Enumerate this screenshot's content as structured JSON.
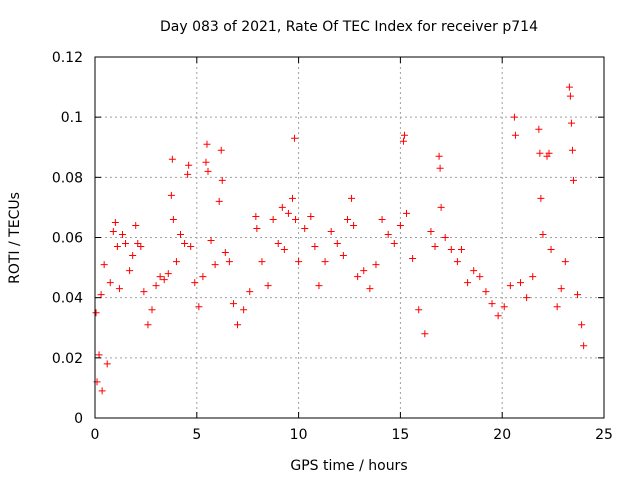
{
  "chart_data": {
    "type": "scatter",
    "title": "Day 083 of 2021, Rate Of TEC Index for receiver p714",
    "xlabel": "GPS time / hours",
    "ylabel": "ROTI / TECUs",
    "xlim": [
      0,
      25
    ],
    "ylim": [
      0,
      0.12
    ],
    "xticks": [
      0,
      5,
      10,
      15,
      20,
      25
    ],
    "xtick_labels": [
      "0",
      "5",
      "10",
      "15",
      "20",
      "25"
    ],
    "yticks": [
      0,
      0.02,
      0.04,
      0.06,
      0.08,
      0.1,
      0.12
    ],
    "ytick_labels": [
      "0",
      "0.02",
      "0.04",
      "0.06",
      "0.08",
      "0.1",
      "0.12"
    ],
    "grid": true,
    "marker": "+",
    "marker_color": "#ff0000",
    "series": [
      {
        "name": "ROTI",
        "points": [
          [
            0.05,
            0.035
          ],
          [
            0.1,
            0.012
          ],
          [
            0.2,
            0.021
          ],
          [
            0.3,
            0.041
          ],
          [
            0.35,
            0.009
          ],
          [
            0.45,
            0.051
          ],
          [
            0.6,
            0.018
          ],
          [
            0.75,
            0.045
          ],
          [
            0.9,
            0.062
          ],
          [
            1.0,
            0.065
          ],
          [
            1.1,
            0.057
          ],
          [
            1.2,
            0.043
          ],
          [
            1.35,
            0.061
          ],
          [
            1.5,
            0.058
          ],
          [
            1.7,
            0.049
          ],
          [
            1.85,
            0.054
          ],
          [
            2.0,
            0.064
          ],
          [
            2.1,
            0.058
          ],
          [
            2.25,
            0.057
          ],
          [
            2.4,
            0.042
          ],
          [
            2.6,
            0.031
          ],
          [
            2.8,
            0.036
          ],
          [
            3.0,
            0.044
          ],
          [
            3.2,
            0.047
          ],
          [
            3.4,
            0.046
          ],
          [
            3.6,
            0.048
          ],
          [
            3.75,
            0.074
          ],
          [
            3.8,
            0.086
          ],
          [
            3.85,
            0.066
          ],
          [
            4.0,
            0.052
          ],
          [
            4.2,
            0.061
          ],
          [
            4.4,
            0.058
          ],
          [
            4.55,
            0.081
          ],
          [
            4.6,
            0.084
          ],
          [
            4.7,
            0.057
          ],
          [
            4.9,
            0.045
          ],
          [
            5.1,
            0.037
          ],
          [
            5.3,
            0.047
          ],
          [
            5.45,
            0.085
          ],
          [
            5.5,
            0.091
          ],
          [
            5.55,
            0.082
          ],
          [
            5.7,
            0.059
          ],
          [
            5.9,
            0.051
          ],
          [
            6.1,
            0.072
          ],
          [
            6.2,
            0.089
          ],
          [
            6.25,
            0.079
          ],
          [
            6.4,
            0.055
          ],
          [
            6.6,
            0.052
          ],
          [
            6.8,
            0.038
          ],
          [
            7.0,
            0.031
          ],
          [
            7.3,
            0.036
          ],
          [
            7.6,
            0.042
          ],
          [
            7.9,
            0.067
          ],
          [
            7.95,
            0.063
          ],
          [
            8.2,
            0.052
          ],
          [
            8.5,
            0.044
          ],
          [
            8.75,
            0.066
          ],
          [
            9.0,
            0.058
          ],
          [
            9.2,
            0.07
          ],
          [
            9.3,
            0.056
          ],
          [
            9.5,
            0.068
          ],
          [
            9.7,
            0.073
          ],
          [
            9.8,
            0.093
          ],
          [
            9.85,
            0.066
          ],
          [
            10.0,
            0.052
          ],
          [
            10.3,
            0.063
          ],
          [
            10.6,
            0.067
          ],
          [
            10.8,
            0.057
          ],
          [
            11.0,
            0.044
          ],
          [
            11.3,
            0.052
          ],
          [
            11.6,
            0.062
          ],
          [
            11.9,
            0.058
          ],
          [
            12.2,
            0.054
          ],
          [
            12.4,
            0.066
          ],
          [
            12.6,
            0.073
          ],
          [
            12.7,
            0.064
          ],
          [
            12.9,
            0.047
          ],
          [
            13.2,
            0.049
          ],
          [
            13.5,
            0.043
          ],
          [
            13.8,
            0.051
          ],
          [
            14.1,
            0.066
          ],
          [
            14.4,
            0.061
          ],
          [
            14.7,
            0.058
          ],
          [
            15.0,
            0.064
          ],
          [
            15.15,
            0.092
          ],
          [
            15.2,
            0.094
          ],
          [
            15.3,
            0.068
          ],
          [
            15.6,
            0.053
          ],
          [
            15.9,
            0.036
          ],
          [
            16.2,
            0.028
          ],
          [
            16.5,
            0.062
          ],
          [
            16.7,
            0.057
          ],
          [
            16.9,
            0.087
          ],
          [
            16.95,
            0.083
          ],
          [
            17.0,
            0.07
          ],
          [
            17.2,
            0.06
          ],
          [
            17.5,
            0.056
          ],
          [
            17.8,
            0.052
          ],
          [
            18.0,
            0.056
          ],
          [
            18.3,
            0.045
          ],
          [
            18.6,
            0.049
          ],
          [
            18.9,
            0.047
          ],
          [
            19.2,
            0.042
          ],
          [
            19.5,
            0.038
          ],
          [
            19.8,
            0.034
          ],
          [
            20.1,
            0.037
          ],
          [
            20.4,
            0.044
          ],
          [
            20.6,
            0.1
          ],
          [
            20.65,
            0.094
          ],
          [
            20.9,
            0.045
          ],
          [
            21.2,
            0.04
          ],
          [
            21.5,
            0.047
          ],
          [
            21.8,
            0.096
          ],
          [
            21.85,
            0.088
          ],
          [
            21.9,
            0.073
          ],
          [
            22.0,
            0.061
          ],
          [
            22.2,
            0.087
          ],
          [
            22.3,
            0.088
          ],
          [
            22.4,
            0.056
          ],
          [
            22.7,
            0.037
          ],
          [
            22.9,
            0.043
          ],
          [
            23.1,
            0.052
          ],
          [
            23.3,
            0.11
          ],
          [
            23.35,
            0.107
          ],
          [
            23.4,
            0.098
          ],
          [
            23.45,
            0.089
          ],
          [
            23.5,
            0.079
          ],
          [
            23.7,
            0.041
          ],
          [
            23.9,
            0.031
          ],
          [
            24.0,
            0.024
          ]
        ]
      }
    ]
  }
}
